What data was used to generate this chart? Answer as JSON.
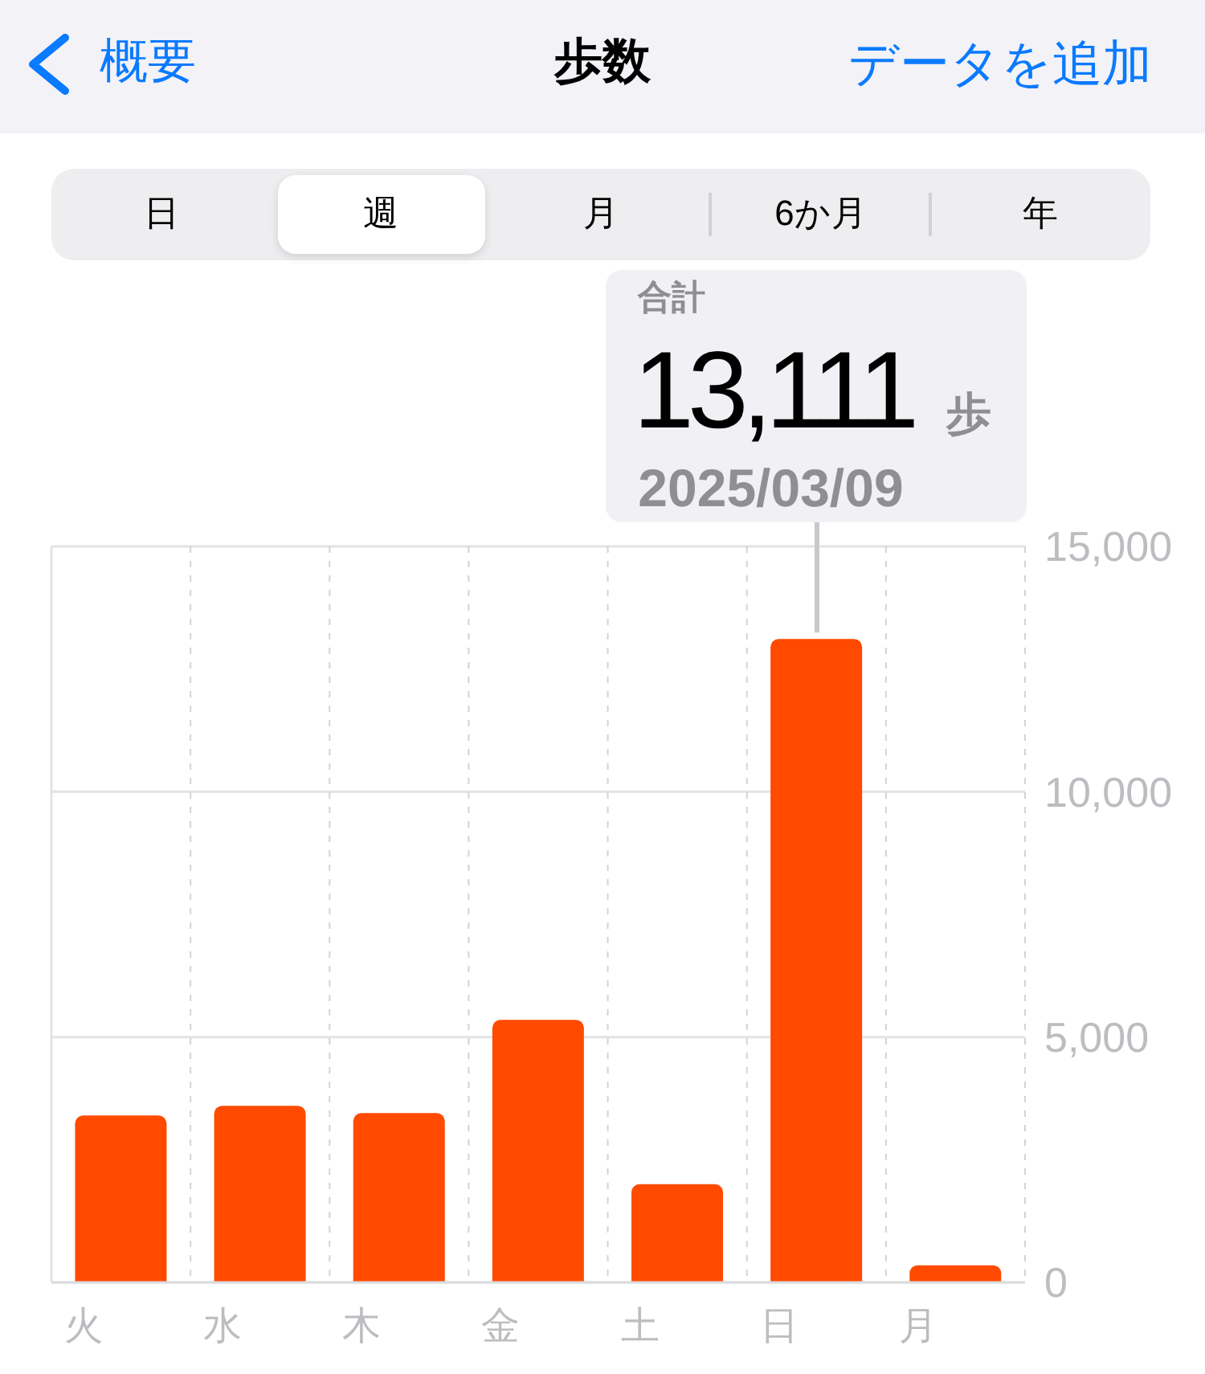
{
  "chart_data": {
    "type": "bar",
    "title": "歩数",
    "categories": [
      "火",
      "水",
      "木",
      "金",
      "土",
      "日",
      "月"
    ],
    "values": [
      3400,
      3600,
      3450,
      5350,
      2000,
      13111,
      350
    ],
    "color": "#ff4a00",
    "ylim": [
      0,
      15000
    ],
    "yticks": [
      0,
      {
        "value": 5000,
        "label": "5,000"
      },
      {
        "value": 10000,
        "label": "10,000"
      },
      {
        "value": 15000,
        "label": "15,000"
      }
    ],
    "grid": true,
    "annotations": [
      "概要",
      "データを追加",
      "日",
      "週",
      "月",
      "6か月",
      "年",
      "合計",
      {
        "text": "13,111",
        "x": "日",
        "y": 13111
      },
      "歩",
      "2025/03/09"
    ]
  }
}
